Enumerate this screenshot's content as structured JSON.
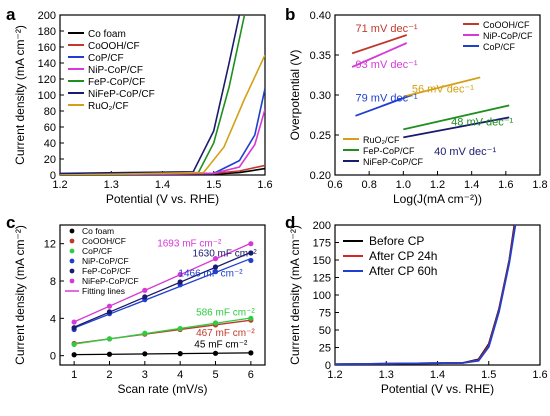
{
  "figure": {
    "panels": [
      "a",
      "b",
      "c",
      "d"
    ]
  },
  "chart_data": [
    {
      "panel": "a",
      "type": "line",
      "xlabel": "Potential (V vs. RHE)",
      "ylabel": "Current density (mA cm⁻²)",
      "xlim": [
        1.2,
        1.6
      ],
      "ylim": [
        0,
        200
      ],
      "xticks": [
        "1.2",
        "1.3",
        "1.4",
        "1.5",
        "1.6"
      ],
      "yticks": [
        "0",
        "20",
        "40",
        "60",
        "80",
        "100",
        "120",
        "140",
        "160",
        "180",
        "200"
      ],
      "legend_position": "top-left",
      "series": [
        {
          "name": "Co foam",
          "color": "#000000",
          "x": [
            1.2,
            1.4,
            1.5,
            1.55,
            1.6
          ],
          "y": [
            0,
            0.5,
            1,
            3,
            8
          ]
        },
        {
          "name": "CoOOH/CF",
          "color": "#c0392b",
          "x": [
            1.2,
            1.4,
            1.5,
            1.55,
            1.6
          ],
          "y": [
            0,
            1,
            2,
            5,
            12
          ]
        },
        {
          "name": "CoP/CF",
          "color": "#1f3fd1",
          "x": [
            1.2,
            1.5,
            1.55,
            1.58,
            1.6
          ],
          "y": [
            0,
            2,
            18,
            50,
            108
          ]
        },
        {
          "name": "NiP-CoP/CF",
          "color": "#d63ad6",
          "x": [
            1.2,
            1.5,
            1.55,
            1.58,
            1.6
          ],
          "y": [
            0,
            2,
            10,
            38,
            82
          ]
        },
        {
          "name": "FeP-CoP/CF",
          "color": "#1f8f1f",
          "x": [
            1.2,
            1.47,
            1.5,
            1.53,
            1.56
          ],
          "y": [
            0,
            3,
            40,
            110,
            200
          ]
        },
        {
          "name": "NiFeP-CoP/CF",
          "color": "#1a1a6e",
          "x": [
            1.2,
            1.46,
            1.5,
            1.53,
            1.55
          ],
          "y": [
            2,
            4,
            55,
            140,
            200
          ]
        },
        {
          "name": "RuO₂/CF",
          "color": "#d4a017",
          "x": [
            1.2,
            1.48,
            1.52,
            1.56,
            1.6
          ],
          "y": [
            0,
            3,
            35,
            95,
            150
          ]
        }
      ]
    },
    {
      "panel": "b",
      "type": "line",
      "xlabel": "Log(J(mA cm⁻²))",
      "ylabel": "Overpotential (V)",
      "xlim": [
        0.6,
        1.8
      ],
      "ylim": [
        0.2,
        0.4
      ],
      "xticks": [
        "0.6",
        "0.8",
        "1.0",
        "1.2",
        "1.4",
        "1.6",
        "1.8"
      ],
      "yticks": [
        "0.20",
        "0.25",
        "0.30",
        "0.35",
        "0.40"
      ],
      "legend_top": [
        "CoOOH/CF",
        "NiP-CoP/CF",
        "CoP/CF"
      ],
      "legend_bottom": [
        "RuO₂/CF",
        "FeP-CoP/CF",
        "NiFeP-CoP/CF"
      ],
      "series": [
        {
          "name": "CoOOH/CF",
          "color": "#c0392b",
          "slope_label": "71 mV dec⁻¹",
          "x": [
            0.7,
            1.02
          ],
          "y": [
            0.352,
            0.375
          ]
        },
        {
          "name": "NiP-CoP/CF",
          "color": "#d63ad6",
          "slope_label": "93 mV dec⁻¹",
          "x": [
            0.7,
            1.02
          ],
          "y": [
            0.335,
            0.365
          ]
        },
        {
          "name": "CoP/CF",
          "color": "#1f3fd1",
          "slope_label": "79 mV dec⁻¹",
          "x": [
            0.72,
            1.05
          ],
          "y": [
            0.274,
            0.3
          ]
        },
        {
          "name": "RuO₂/CF",
          "color": "#d4a017",
          "slope_label": "56 mV dec⁻¹",
          "x": [
            1.0,
            1.45
          ],
          "y": [
            0.298,
            0.322
          ]
        },
        {
          "name": "FeP-CoP/CF",
          "color": "#1f8f1f",
          "slope_label": "48 mV dec⁻¹",
          "x": [
            1.0,
            1.62
          ],
          "y": [
            0.257,
            0.287
          ]
        },
        {
          "name": "NiFeP-CoP/CF",
          "color": "#1a1a6e",
          "slope_label": "40 mV dec⁻¹",
          "x": [
            1.0,
            1.62
          ],
          "y": [
            0.247,
            0.272
          ]
        }
      ]
    },
    {
      "panel": "c",
      "type": "scatter",
      "xlabel": "Scan rate (mV/s)",
      "ylabel": "Current density (mA cm⁻²)",
      "xlim": [
        0.6,
        6.4
      ],
      "ylim": [
        -1,
        14
      ],
      "xticks": [
        "1",
        "2",
        "3",
        "4",
        "5",
        "6"
      ],
      "yticks": [
        "0",
        "4",
        "8",
        "12"
      ],
      "legend_position": "top-left",
      "fit_label": "Fitting lines",
      "series": [
        {
          "name": "Co foam",
          "color": "#000000",
          "x": [
            1,
            2,
            3,
            4,
            5,
            6
          ],
          "y": [
            0.1,
            0.15,
            0.2,
            0.22,
            0.25,
            0.3
          ],
          "capacitance_label": "45 mF cm⁻²"
        },
        {
          "name": "CoOOH/CF",
          "color": "#c0392b",
          "x": [
            1,
            2,
            3,
            4,
            5,
            6
          ],
          "y": [
            1.3,
            1.8,
            2.3,
            2.8,
            3.3,
            3.8
          ],
          "capacitance_label": "467 mF cm⁻²"
        },
        {
          "name": "CoP/CF",
          "color": "#2ecc40",
          "x": [
            1,
            2,
            3,
            4,
            5,
            6
          ],
          "y": [
            1.2,
            1.8,
            2.4,
            2.9,
            3.5,
            4.0
          ],
          "capacitance_label": "586 mF cm⁻²"
        },
        {
          "name": "NiP-CoP/CF",
          "color": "#1f3fd1",
          "x": [
            1,
            2,
            3,
            4,
            5,
            6
          ],
          "y": [
            2.8,
            4.5,
            6.0,
            7.6,
            9.0,
            10.2
          ],
          "capacitance_label": "1466 mF cm⁻²"
        },
        {
          "name": "FeP-CoP/CF",
          "color": "#1a1a6e",
          "x": [
            1,
            2,
            3,
            4,
            5,
            6
          ],
          "y": [
            3.0,
            4.7,
            6.3,
            7.9,
            9.5,
            11.0
          ],
          "capacitance_label": "1630 mF cm⁻²"
        },
        {
          "name": "NiFeP-CoP/CF",
          "color": "#d63ad6",
          "x": [
            1,
            2,
            3,
            4,
            5,
            6
          ],
          "y": [
            3.6,
            5.3,
            7.0,
            8.7,
            10.4,
            12.0
          ],
          "capacitance_label": "1693 mF cm⁻²"
        }
      ]
    },
    {
      "panel": "d",
      "type": "line",
      "xlabel": "Potential (V vs. RHE)",
      "ylabel": "Current density (mA cm⁻²)",
      "xlim": [
        1.2,
        1.6
      ],
      "ylim": [
        0,
        200
      ],
      "xticks": [
        "1.2",
        "1.3",
        "1.4",
        "1.5",
        "1.6"
      ],
      "yticks": [
        "0",
        "25",
        "50",
        "75",
        "100",
        "125",
        "150",
        "175",
        "200"
      ],
      "legend_position": "top-left",
      "series": [
        {
          "name": "Before CP",
          "color": "#000000",
          "x": [
            1.2,
            1.45,
            1.48,
            1.5,
            1.52,
            1.54,
            1.55
          ],
          "y": [
            1,
            3,
            8,
            30,
            80,
            150,
            200
          ]
        },
        {
          "name": "After CP 24h",
          "color": "#d62728",
          "x": [
            1.2,
            1.45,
            1.48,
            1.5,
            1.52,
            1.54,
            1.551
          ],
          "y": [
            1,
            3,
            7,
            28,
            78,
            148,
            200
          ]
        },
        {
          "name": "After CP 60h",
          "color": "#1f3fd1",
          "x": [
            1.2,
            1.45,
            1.48,
            1.5,
            1.52,
            1.54,
            1.552
          ],
          "y": [
            1,
            3,
            6,
            26,
            76,
            146,
            200
          ]
        }
      ]
    }
  ]
}
